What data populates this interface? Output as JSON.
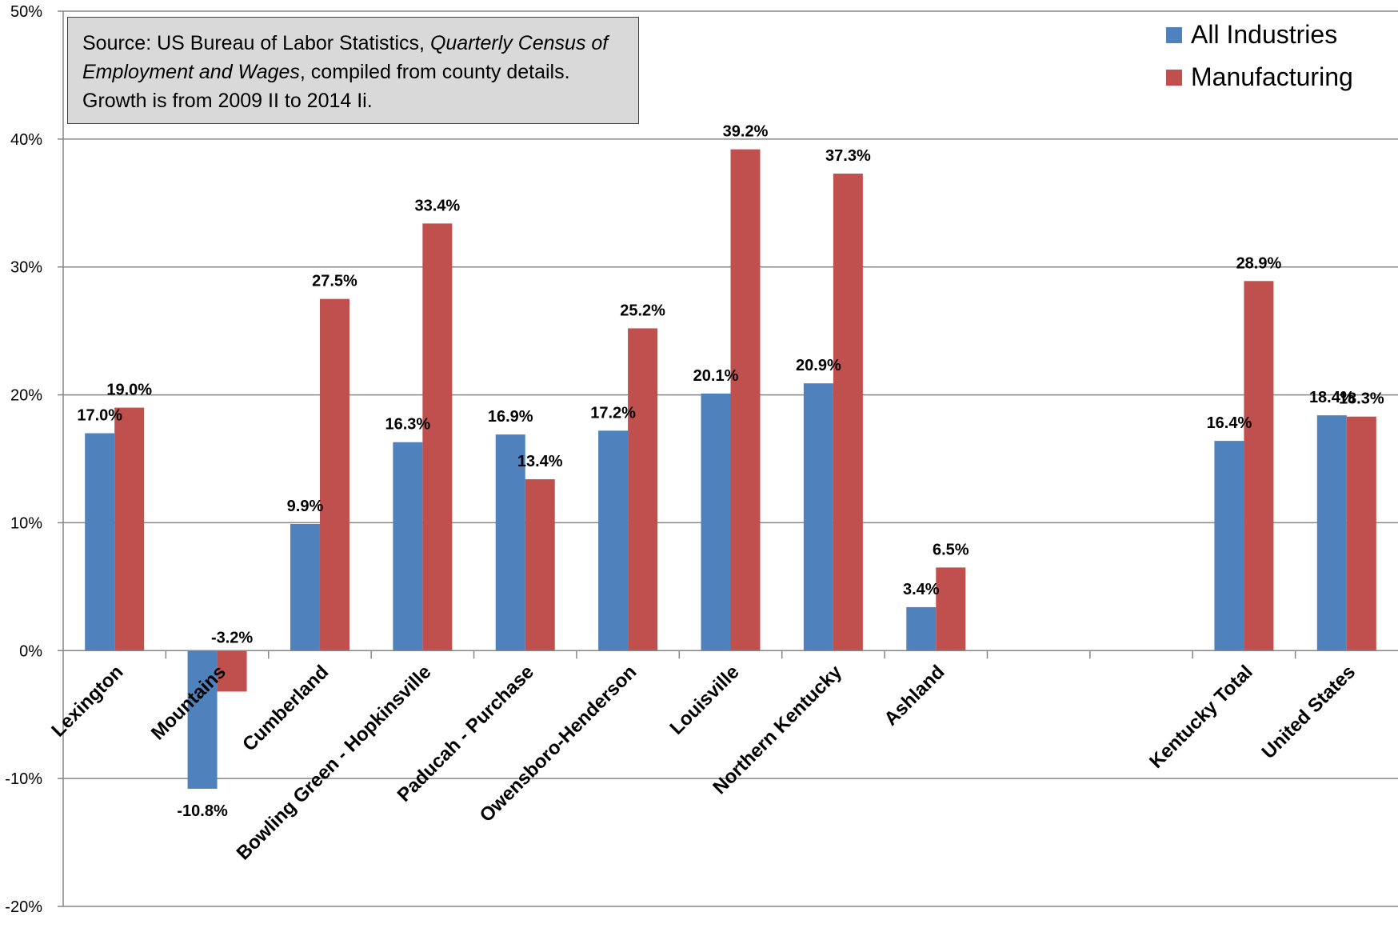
{
  "chart_data": {
    "type": "bar",
    "categories": [
      "Lexington",
      "Mountains",
      "Cumberland",
      "Bowling Green - Hopkinsville",
      "Paducah - Purchase",
      "Owensboro-Henderson",
      "Louisville",
      "Northern Kentucky",
      "Ashland",
      "",
      "",
      "Kentucky Total",
      "United States"
    ],
    "series": [
      {
        "name": "All Industries",
        "color": "#4f81bd",
        "values": [
          17.0,
          -10.8,
          9.9,
          16.3,
          16.9,
          17.2,
          20.1,
          20.9,
          3.4,
          null,
          null,
          16.4,
          18.4
        ],
        "labels": [
          "17.0%",
          "-10.8%",
          "9.9%",
          "16.3%",
          "16.9%",
          "17.2%",
          "20.1%",
          "20.9%",
          "3.4%",
          "",
          "",
          "16.4%",
          "18.4%"
        ]
      },
      {
        "name": "Manufacturing",
        "color": "#c0504d",
        "values": [
          19.0,
          -3.2,
          27.5,
          33.4,
          13.4,
          25.2,
          39.2,
          37.3,
          6.5,
          null,
          null,
          28.9,
          18.3
        ],
        "labels": [
          "19.0%",
          "-3.2%",
          "27.5%",
          "33.4%",
          "13.4%",
          "25.2%",
          "39.2%",
          "37.3%",
          "6.5%",
          "",
          "",
          "28.9%",
          "18.3%"
        ]
      }
    ],
    "ylim": [
      -20,
      50
    ],
    "yticks": [
      50,
      40,
      30,
      20,
      10,
      0,
      -10,
      -20
    ],
    "ytick_labels": [
      "50%",
      "40%",
      "30%",
      "20%",
      "10%",
      "0%",
      "-10%",
      "-20%"
    ],
    "grid": true,
    "legend_position": "top-right",
    "title": "",
    "xlabel": "",
    "ylabel": ""
  },
  "source_note": {
    "prefix": "Source: US Bureau of Labor Statistics, ",
    "italic": "Quarterly Census of Employment and Wages",
    "suffix": ", compiled from county details. Growth is from 2009 II to  2014 Ii."
  }
}
